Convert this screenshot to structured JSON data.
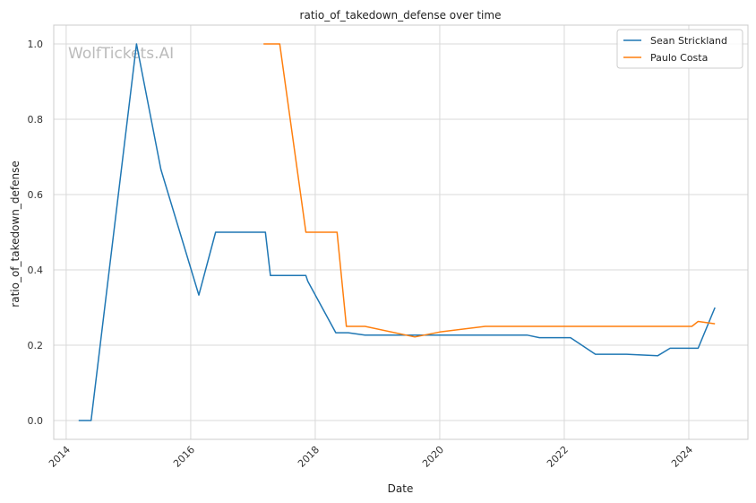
{
  "chart_data": {
    "type": "line",
    "title": "ratio_of_takedown_defense over time",
    "xlabel": "Date",
    "ylabel": "ratio_of_takedown_defense",
    "watermark": "WolfTickets.AI",
    "xlim": [
      2013.8,
      2024.95
    ],
    "ylim": [
      -0.05,
      1.05
    ],
    "x_ticks": [
      2014,
      2016,
      2018,
      2020,
      2022,
      2024
    ],
    "y_ticks": [
      0.0,
      0.2,
      0.4,
      0.6,
      0.8,
      1.0
    ],
    "grid": true,
    "legend_position": "top-right",
    "series": [
      {
        "name": "Sean Strickland",
        "color": "#1f77b4",
        "points": [
          [
            2014.2,
            0.0
          ],
          [
            2014.4,
            0.0
          ],
          [
            2015.13,
            1.0
          ],
          [
            2015.52,
            0.667
          ],
          [
            2016.13,
            0.333
          ],
          [
            2016.4,
            0.5
          ],
          [
            2017.2,
            0.5
          ],
          [
            2017.28,
            0.385
          ],
          [
            2017.85,
            0.385
          ],
          [
            2017.88,
            0.37
          ],
          [
            2018.33,
            0.233
          ],
          [
            2018.53,
            0.233
          ],
          [
            2018.8,
            0.227
          ],
          [
            2020.5,
            0.227
          ],
          [
            2021.4,
            0.227
          ],
          [
            2021.6,
            0.22
          ],
          [
            2022.1,
            0.22
          ],
          [
            2022.5,
            0.176
          ],
          [
            2023.0,
            0.176
          ],
          [
            2023.5,
            0.172
          ],
          [
            2023.7,
            0.192
          ],
          [
            2024.15,
            0.192
          ],
          [
            2024.42,
            0.3
          ]
        ]
      },
      {
        "name": "Paulo Costa",
        "color": "#ff7f0e",
        "points": [
          [
            2017.17,
            1.0
          ],
          [
            2017.43,
            1.0
          ],
          [
            2017.85,
            0.5
          ],
          [
            2018.35,
            0.5
          ],
          [
            2018.5,
            0.25
          ],
          [
            2018.8,
            0.25
          ],
          [
            2019.6,
            0.222
          ],
          [
            2020.0,
            0.235
          ],
          [
            2020.73,
            0.25
          ],
          [
            2024.05,
            0.25
          ],
          [
            2024.15,
            0.263
          ],
          [
            2024.42,
            0.257
          ]
        ]
      }
    ]
  }
}
